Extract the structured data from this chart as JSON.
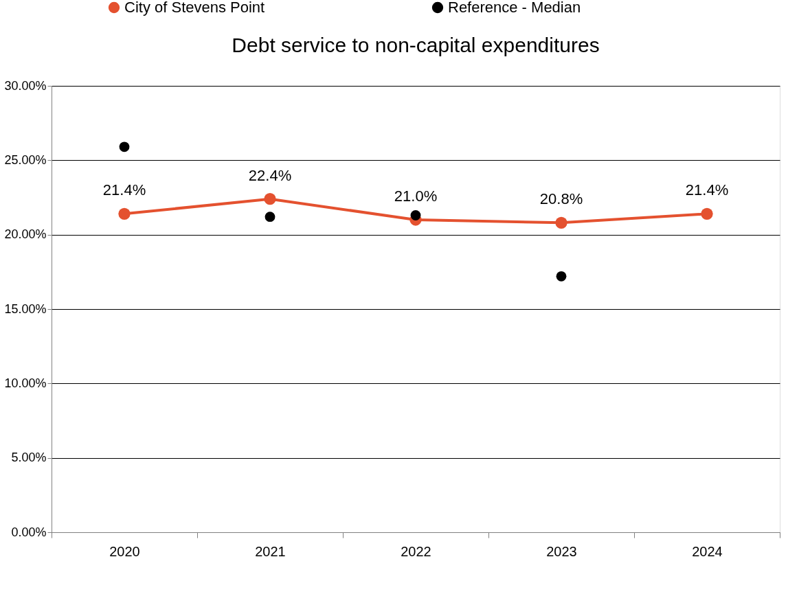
{
  "chart_data": {
    "type": "line",
    "title": "Debt service to non-capital expenditures",
    "categories": [
      "2020",
      "2021",
      "2022",
      "2023",
      "2024"
    ],
    "series": [
      {
        "name": "City of Stevens Point",
        "type": "line",
        "color": "#e4512f",
        "values": [
          21.4,
          22.4,
          21.0,
          20.8,
          21.4
        ],
        "value_labels": [
          "21.4%",
          "22.4%",
          "21.0%",
          "20.8%",
          "21.4%"
        ]
      },
      {
        "name": "Reference - Median",
        "type": "scatter",
        "color": "#000000",
        "values": [
          25.9,
          21.2,
          21.3,
          17.2,
          null
        ]
      }
    ],
    "ylim": [
      0,
      30
    ],
    "yticks": [
      {
        "value": 0,
        "label": "0.00%"
      },
      {
        "value": 5,
        "label": "5.00%"
      },
      {
        "value": 10,
        "label": "10.00%"
      },
      {
        "value": 15,
        "label": "15.00%"
      },
      {
        "value": 20,
        "label": "20.00%"
      },
      {
        "value": 25,
        "label": "25.00%"
      },
      {
        "value": 30,
        "label": "30.00%"
      }
    ],
    "grid": "y",
    "legend": "top",
    "marker": "circle"
  }
}
